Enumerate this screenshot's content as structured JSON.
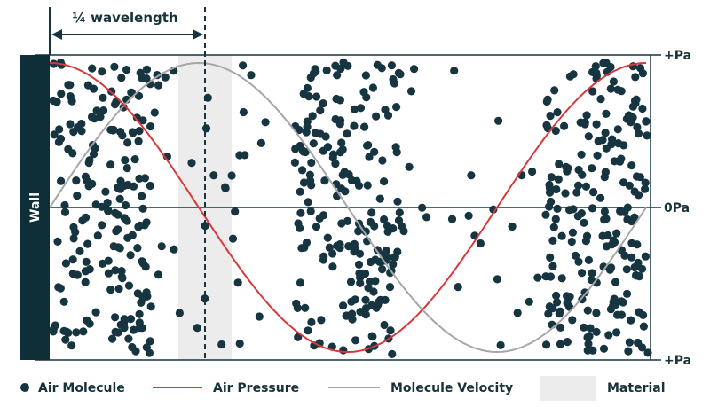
{
  "diagram": {
    "annotation": "¼ wavelength",
    "wall_label": "Wall",
    "pressure_labels": {
      "top": "+Pa",
      "middle": "0Pa",
      "bottom": "+Pa"
    },
    "colors": {
      "wall": "#0f2f38",
      "molecule": "#163540",
      "pressure_curve": "#d9373a",
      "velocity_curve": "#a6a6a6",
      "material": "#ececec",
      "axis": "#163540"
    }
  },
  "legend": {
    "molecule": "Air Molecule",
    "pressure": "Air Pressure",
    "velocity": "Molecule Velocity",
    "material": "Material"
  }
}
